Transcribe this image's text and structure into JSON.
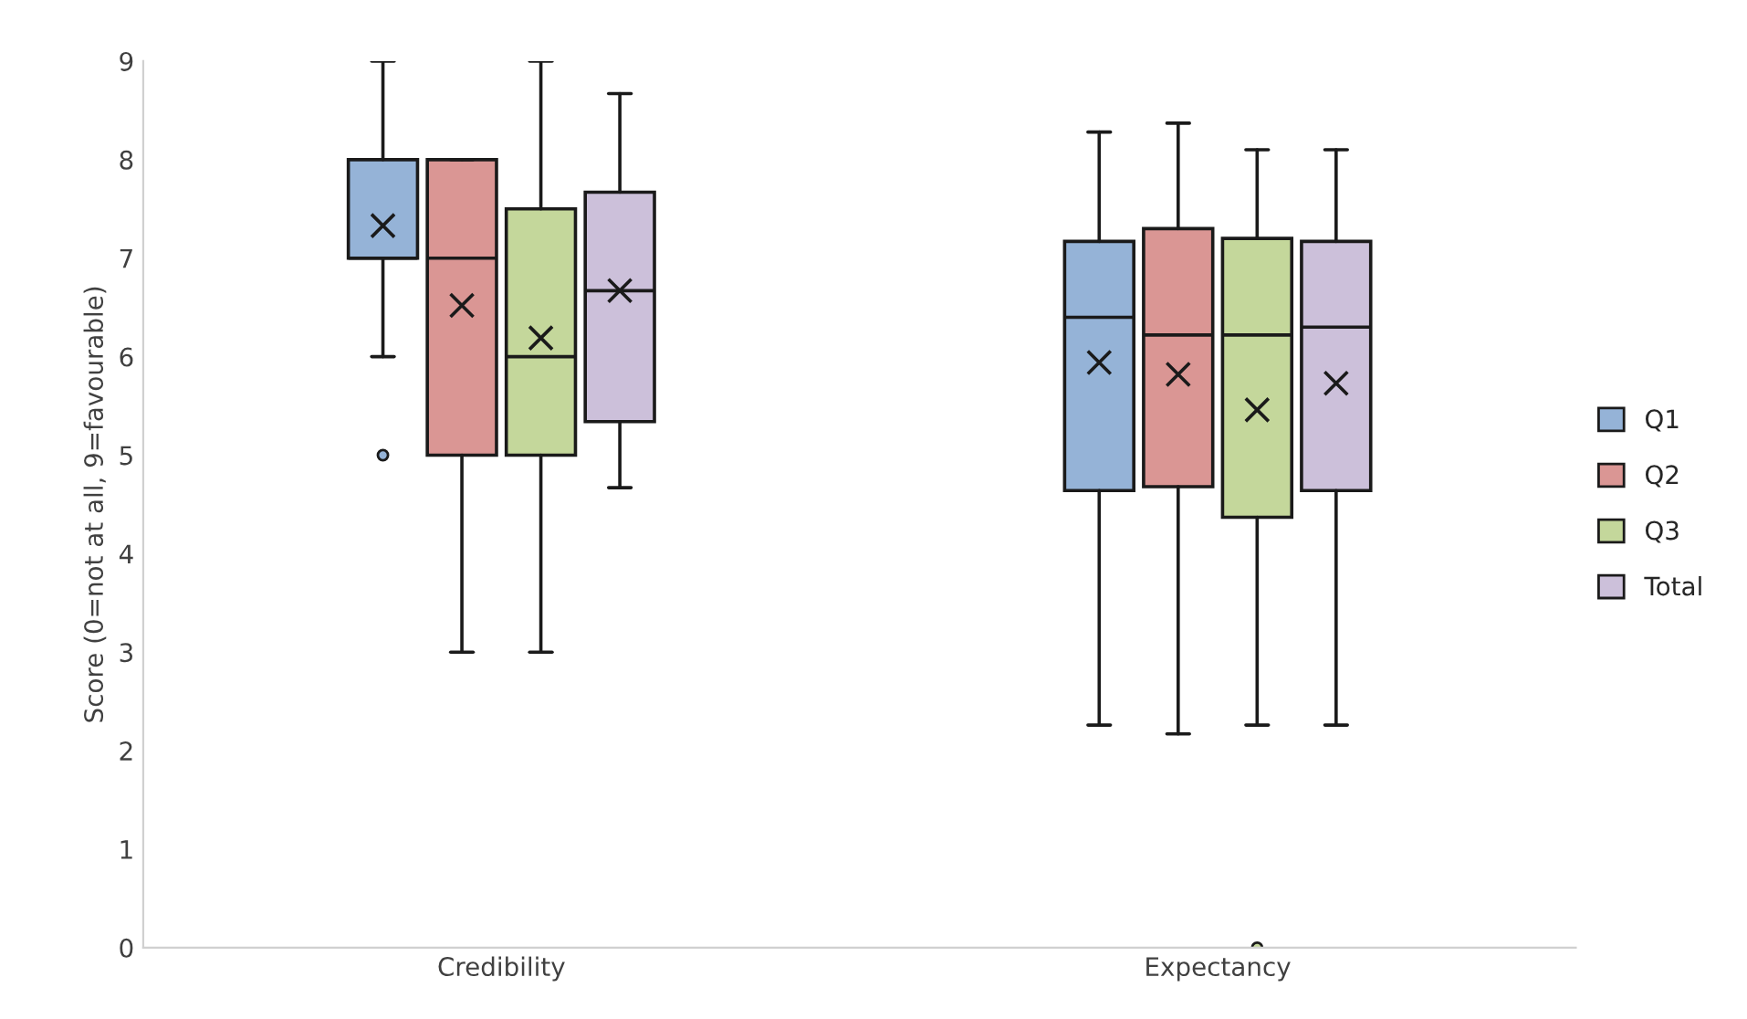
{
  "chart_data": {
    "type": "box",
    "ylabel": "Score (0=not at all, 9=favourable)",
    "categories": [
      "Credibility",
      "Expectancy"
    ],
    "ylim": [
      0,
      9
    ],
    "yticks": [
      0,
      1,
      2,
      3,
      4,
      5,
      6,
      7,
      8,
      9
    ],
    "grid": false,
    "legend": "right",
    "series": [
      {
        "name": "Q1",
        "color": "#95b3d7",
        "boxes": [
          {
            "low": 6,
            "q1": 7,
            "median": 7,
            "q3": 8,
            "high": 9,
            "mean": 7.33,
            "outliers": [
              5
            ]
          },
          {
            "low": 2.26,
            "q1": 4.64,
            "median": 6.4,
            "q3": 7.17,
            "high": 8.28,
            "mean": 5.94
          }
        ]
      },
      {
        "name": "Q2",
        "color": "#da9694",
        "boxes": [
          {
            "low": 3,
            "q1": 5,
            "median": 7,
            "q3": 8,
            "high": 8,
            "mean": 6.52
          },
          {
            "low": 2.17,
            "q1": 4.68,
            "median": 6.22,
            "q3": 7.3,
            "high": 8.37,
            "mean": 5.82
          }
        ]
      },
      {
        "name": "Q3",
        "color": "#c4d79b",
        "boxes": [
          {
            "low": 3,
            "q1": 5,
            "median": 6,
            "q3": 7.5,
            "high": 9,
            "mean": 6.19
          },
          {
            "low": 2.26,
            "q1": 4.37,
            "median": 6.22,
            "q3": 7.2,
            "high": 8.1,
            "mean": 5.46,
            "outliers": [
              0
            ]
          }
        ]
      },
      {
        "name": "Total",
        "color": "#ccc0da",
        "boxes": [
          {
            "low": 4.67,
            "q1": 5.34,
            "median": 6.67,
            "q3": 7.67,
            "high": 8.67,
            "mean": 6.67
          },
          {
            "low": 2.26,
            "q1": 4.64,
            "median": 6.3,
            "q3": 7.17,
            "high": 8.1,
            "mean": 5.73
          }
        ]
      }
    ]
  }
}
